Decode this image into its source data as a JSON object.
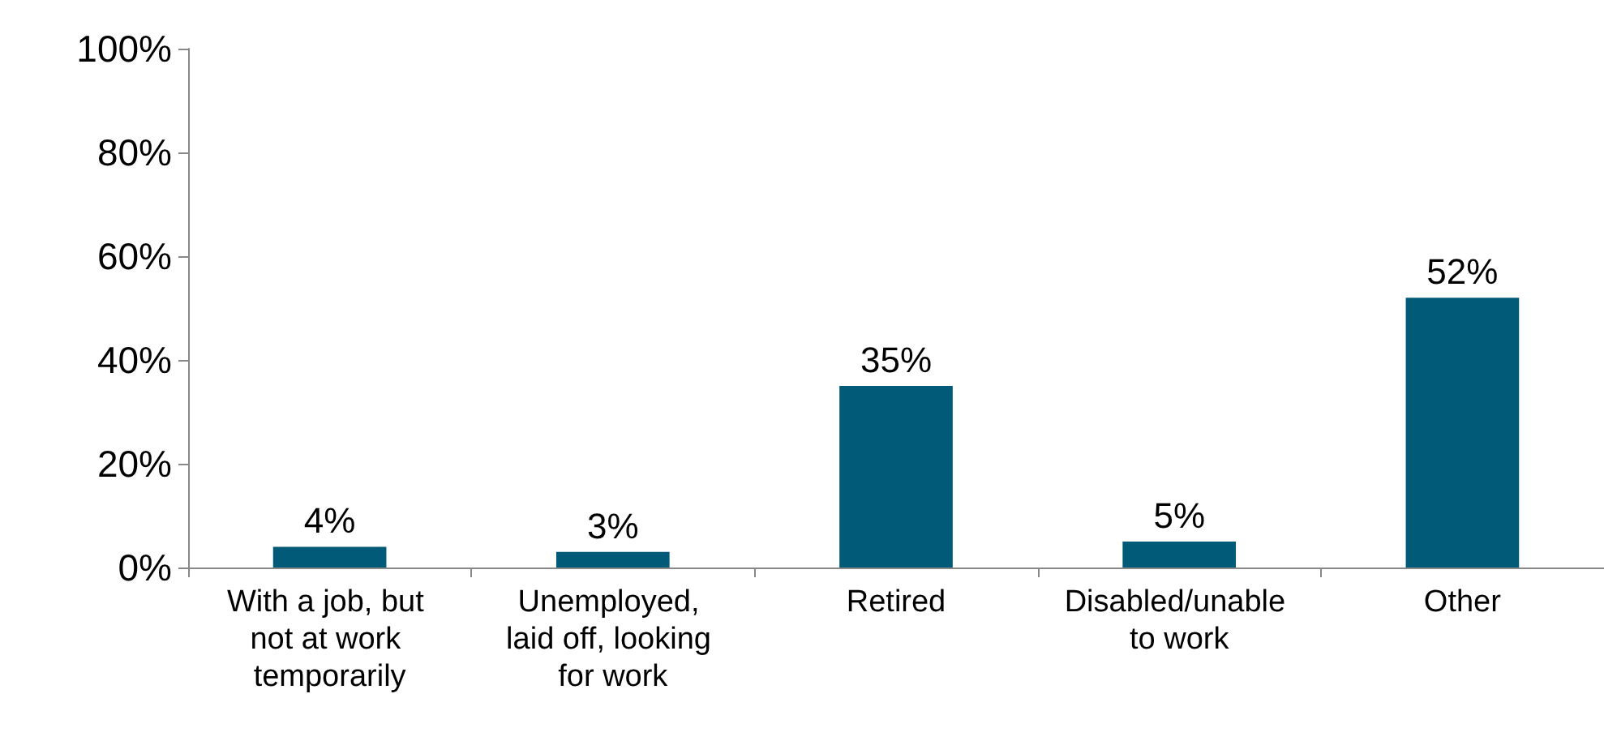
{
  "chart_data": {
    "type": "bar",
    "categories": [
      "With a job, but not at work temporarily",
      "Unemployed, laid off, looking for work",
      "Retired",
      "Disabled/unable to work",
      "Other"
    ],
    "values": [
      4,
      3,
      35,
      5,
      52
    ],
    "value_labels": [
      "4%",
      "3%",
      "35%",
      "5%",
      "52%"
    ],
    "color": "#005a78",
    "ylim": [
      0,
      100
    ],
    "yticks": [
      {
        "value": 0,
        "label": "0%"
      },
      {
        "value": 20,
        "label": "20%"
      },
      {
        "value": 40,
        "label": "40%"
      },
      {
        "value": 60,
        "label": "60%"
      },
      {
        "value": 80,
        "label": "80%"
      },
      {
        "value": 100,
        "label": "100%"
      }
    ],
    "grid": false
  }
}
